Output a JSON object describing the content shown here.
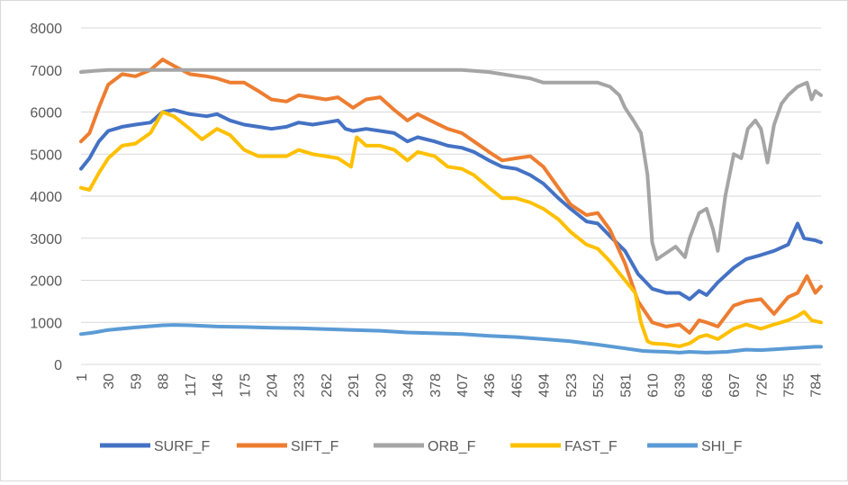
{
  "chart_data": {
    "type": "line",
    "title": "",
    "xlabel": "",
    "ylabel": "",
    "ylim": [
      0,
      8000
    ],
    "yticks": [
      0,
      1000,
      2000,
      3000,
      4000,
      5000,
      6000,
      7000,
      8000
    ],
    "ytick_labels": [
      "0",
      "1000",
      "2000",
      "3000",
      "4000",
      "5000",
      "6000",
      "7000",
      "8000"
    ],
    "xlim": [
      1,
      790
    ],
    "xticks": [
      1,
      30,
      59,
      88,
      117,
      146,
      175,
      204,
      233,
      262,
      291,
      320,
      349,
      378,
      407,
      436,
      465,
      494,
      523,
      552,
      581,
      610,
      639,
      668,
      697,
      726,
      755,
      784
    ],
    "xtick_labels": [
      "1",
      "30",
      "59",
      "88",
      "117",
      "146",
      "175",
      "204",
      "233",
      "262",
      "291",
      "320",
      "349",
      "378",
      "407",
      "436",
      "465",
      "494",
      "523",
      "552",
      "581",
      "610",
      "639",
      "668",
      "697",
      "726",
      "755",
      "784"
    ],
    "grid": "horizontal",
    "legend_position": "bottom",
    "series": [
      {
        "name": "SURF_F",
        "color": "#4472C4",
        "points": [
          [
            1,
            4650
          ],
          [
            10,
            4900
          ],
          [
            20,
            5300
          ],
          [
            30,
            5550
          ],
          [
            45,
            5650
          ],
          [
            59,
            5700
          ],
          [
            75,
            5750
          ],
          [
            88,
            6000
          ],
          [
            100,
            6050
          ],
          [
            117,
            5950
          ],
          [
            135,
            5900
          ],
          [
            146,
            5950
          ],
          [
            160,
            5800
          ],
          [
            175,
            5700
          ],
          [
            190,
            5650
          ],
          [
            204,
            5600
          ],
          [
            220,
            5650
          ],
          [
            233,
            5750
          ],
          [
            248,
            5700
          ],
          [
            262,
            5750
          ],
          [
            275,
            5800
          ],
          [
            283,
            5600
          ],
          [
            291,
            5550
          ],
          [
            305,
            5600
          ],
          [
            320,
            5550
          ],
          [
            335,
            5500
          ],
          [
            349,
            5300
          ],
          [
            360,
            5400
          ],
          [
            378,
            5300
          ],
          [
            392,
            5200
          ],
          [
            407,
            5150
          ],
          [
            420,
            5050
          ],
          [
            436,
            4850
          ],
          [
            450,
            4700
          ],
          [
            465,
            4650
          ],
          [
            480,
            4500
          ],
          [
            494,
            4300
          ],
          [
            510,
            3950
          ],
          [
            523,
            3700
          ],
          [
            540,
            3400
          ],
          [
            552,
            3350
          ],
          [
            565,
            3050
          ],
          [
            581,
            2700
          ],
          [
            595,
            2150
          ],
          [
            610,
            1800
          ],
          [
            625,
            1700
          ],
          [
            639,
            1700
          ],
          [
            650,
            1550
          ],
          [
            660,
            1750
          ],
          [
            668,
            1650
          ],
          [
            680,
            1950
          ],
          [
            697,
            2300
          ],
          [
            710,
            2500
          ],
          [
            726,
            2600
          ],
          [
            740,
            2700
          ],
          [
            755,
            2850
          ],
          [
            765,
            3350
          ],
          [
            772,
            3000
          ],
          [
            784,
            2950
          ],
          [
            790,
            2900
          ]
        ]
      },
      {
        "name": "SIFT_F",
        "color": "#ED7D31",
        "points": [
          [
            1,
            5300
          ],
          [
            10,
            5500
          ],
          [
            20,
            6100
          ],
          [
            30,
            6650
          ],
          [
            45,
            6900
          ],
          [
            59,
            6850
          ],
          [
            75,
            7000
          ],
          [
            88,
            7250
          ],
          [
            100,
            7100
          ],
          [
            117,
            6900
          ],
          [
            135,
            6850
          ],
          [
            146,
            6800
          ],
          [
            160,
            6700
          ],
          [
            175,
            6700
          ],
          [
            190,
            6500
          ],
          [
            204,
            6300
          ],
          [
            220,
            6250
          ],
          [
            233,
            6400
          ],
          [
            248,
            6350
          ],
          [
            262,
            6300
          ],
          [
            275,
            6350
          ],
          [
            291,
            6100
          ],
          [
            305,
            6300
          ],
          [
            320,
            6350
          ],
          [
            335,
            6050
          ],
          [
            349,
            5800
          ],
          [
            360,
            5950
          ],
          [
            378,
            5750
          ],
          [
            392,
            5600
          ],
          [
            407,
            5500
          ],
          [
            420,
            5300
          ],
          [
            436,
            5050
          ],
          [
            450,
            4850
          ],
          [
            465,
            4900
          ],
          [
            480,
            4950
          ],
          [
            494,
            4700
          ],
          [
            510,
            4200
          ],
          [
            523,
            3800
          ],
          [
            540,
            3550
          ],
          [
            552,
            3600
          ],
          [
            565,
            3200
          ],
          [
            581,
            2400
          ],
          [
            595,
            1500
          ],
          [
            610,
            1000
          ],
          [
            625,
            900
          ],
          [
            639,
            950
          ],
          [
            650,
            750
          ],
          [
            660,
            1050
          ],
          [
            668,
            1000
          ],
          [
            680,
            900
          ],
          [
            697,
            1400
          ],
          [
            710,
            1500
          ],
          [
            726,
            1550
          ],
          [
            740,
            1200
          ],
          [
            755,
            1600
          ],
          [
            765,
            1700
          ],
          [
            775,
            2100
          ],
          [
            784,
            1700
          ],
          [
            790,
            1850
          ]
        ]
      },
      {
        "name": "ORB_F",
        "color": "#A5A5A5",
        "points": [
          [
            1,
            6950
          ],
          [
            15,
            6980
          ],
          [
            30,
            7000
          ],
          [
            59,
            7000
          ],
          [
            88,
            7000
          ],
          [
            117,
            7000
          ],
          [
            146,
            7000
          ],
          [
            175,
            7000
          ],
          [
            204,
            7000
          ],
          [
            233,
            7000
          ],
          [
            262,
            7000
          ],
          [
            291,
            7000
          ],
          [
            320,
            7000
          ],
          [
            349,
            7000
          ],
          [
            378,
            7000
          ],
          [
            407,
            7000
          ],
          [
            420,
            6980
          ],
          [
            436,
            6950
          ],
          [
            450,
            6900
          ],
          [
            465,
            6850
          ],
          [
            480,
            6800
          ],
          [
            494,
            6700
          ],
          [
            510,
            6700
          ],
          [
            523,
            6700
          ],
          [
            540,
            6700
          ],
          [
            552,
            6700
          ],
          [
            565,
            6600
          ],
          [
            575,
            6400
          ],
          [
            581,
            6100
          ],
          [
            590,
            5800
          ],
          [
            598,
            5500
          ],
          [
            605,
            4500
          ],
          [
            610,
            2900
          ],
          [
            615,
            2500
          ],
          [
            625,
            2650
          ],
          [
            635,
            2800
          ],
          [
            645,
            2550
          ],
          [
            650,
            3000
          ],
          [
            660,
            3600
          ],
          [
            668,
            3700
          ],
          [
            675,
            3200
          ],
          [
            680,
            2700
          ],
          [
            688,
            4000
          ],
          [
            697,
            5000
          ],
          [
            705,
            4900
          ],
          [
            712,
            5600
          ],
          [
            720,
            5800
          ],
          [
            726,
            5600
          ],
          [
            733,
            4800
          ],
          [
            740,
            5700
          ],
          [
            748,
            6200
          ],
          [
            755,
            6400
          ],
          [
            765,
            6600
          ],
          [
            775,
            6700
          ],
          [
            780,
            6300
          ],
          [
            784,
            6500
          ],
          [
            790,
            6400
          ]
        ]
      },
      {
        "name": "FAST_F",
        "color": "#FFC000",
        "points": [
          [
            1,
            4200
          ],
          [
            10,
            4150
          ],
          [
            20,
            4550
          ],
          [
            30,
            4900
          ],
          [
            45,
            5200
          ],
          [
            59,
            5250
          ],
          [
            75,
            5500
          ],
          [
            88,
            6000
          ],
          [
            100,
            5900
          ],
          [
            117,
            5600
          ],
          [
            130,
            5350
          ],
          [
            146,
            5600
          ],
          [
            160,
            5450
          ],
          [
            175,
            5100
          ],
          [
            190,
            4950
          ],
          [
            204,
            4950
          ],
          [
            220,
            4950
          ],
          [
            233,
            5100
          ],
          [
            248,
            5000
          ],
          [
            262,
            4950
          ],
          [
            275,
            4900
          ],
          [
            289,
            4700
          ],
          [
            295,
            5400
          ],
          [
            305,
            5200
          ],
          [
            320,
            5200
          ],
          [
            335,
            5100
          ],
          [
            349,
            4850
          ],
          [
            360,
            5050
          ],
          [
            378,
            4950
          ],
          [
            392,
            4700
          ],
          [
            407,
            4650
          ],
          [
            420,
            4500
          ],
          [
            436,
            4200
          ],
          [
            450,
            3950
          ],
          [
            465,
            3950
          ],
          [
            480,
            3850
          ],
          [
            494,
            3700
          ],
          [
            510,
            3450
          ],
          [
            523,
            3150
          ],
          [
            540,
            2850
          ],
          [
            552,
            2750
          ],
          [
            565,
            2450
          ],
          [
            581,
            2000
          ],
          [
            592,
            1700
          ],
          [
            598,
            1000
          ],
          [
            605,
            550
          ],
          [
            610,
            500
          ],
          [
            625,
            480
          ],
          [
            639,
            430
          ],
          [
            650,
            500
          ],
          [
            660,
            650
          ],
          [
            668,
            700
          ],
          [
            680,
            600
          ],
          [
            697,
            850
          ],
          [
            710,
            950
          ],
          [
            726,
            850
          ],
          [
            740,
            950
          ],
          [
            755,
            1050
          ],
          [
            765,
            1150
          ],
          [
            772,
            1250
          ],
          [
            780,
            1050
          ],
          [
            790,
            1000
          ]
        ]
      },
      {
        "name": "SHI_F",
        "color": "#5B9BD5",
        "points": [
          [
            1,
            720
          ],
          [
            15,
            760
          ],
          [
            30,
            820
          ],
          [
            59,
            880
          ],
          [
            88,
            930
          ],
          [
            100,
            940
          ],
          [
            117,
            930
          ],
          [
            146,
            900
          ],
          [
            175,
            890
          ],
          [
            204,
            870
          ],
          [
            233,
            860
          ],
          [
            262,
            840
          ],
          [
            291,
            820
          ],
          [
            320,
            800
          ],
          [
            349,
            760
          ],
          [
            378,
            740
          ],
          [
            407,
            720
          ],
          [
            436,
            680
          ],
          [
            465,
            650
          ],
          [
            494,
            600
          ],
          [
            523,
            550
          ],
          [
            552,
            470
          ],
          [
            581,
            380
          ],
          [
            600,
            320
          ],
          [
            610,
            310
          ],
          [
            625,
            300
          ],
          [
            639,
            280
          ],
          [
            650,
            300
          ],
          [
            668,
            280
          ],
          [
            690,
            300
          ],
          [
            710,
            350
          ],
          [
            726,
            340
          ],
          [
            740,
            360
          ],
          [
            755,
            380
          ],
          [
            770,
            400
          ],
          [
            784,
            420
          ],
          [
            790,
            420
          ]
        ]
      }
    ]
  }
}
